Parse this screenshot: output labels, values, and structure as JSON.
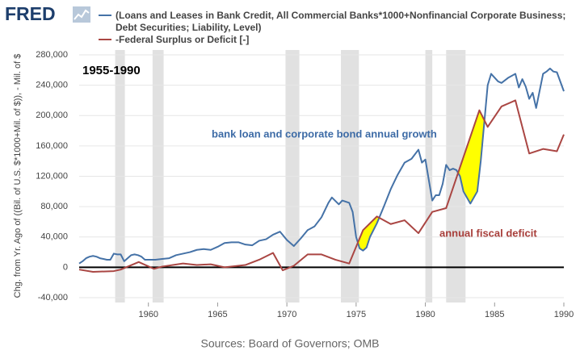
{
  "logo": "FRED",
  "chart_data": {
    "type": "line",
    "period_label": "1955-1990",
    "annotations": [
      {
        "text": "bank loan and corporate bond annual growth",
        "color": "#3d6ba6"
      },
      {
        "text": "annual fiscal deficit",
        "color": "#a83f3b"
      }
    ],
    "y_label": "Chg. from Yr. Ago of ((Bil. of U.S. $*1000+Mil. of $)), - Mil. of $",
    "source": "Sources: Board of Governors; OMB",
    "xlim": [
      1955,
      1990
    ],
    "xticks": [
      1960,
      1965,
      1970,
      1975,
      1980,
      1985,
      1990
    ],
    "ylim": [
      -40000,
      280000
    ],
    "yticks": [
      {
        "value": 280000,
        "label": "280,000"
      },
      {
        "value": 240000,
        "label": "240,000"
      },
      {
        "value": 200000,
        "label": "200,000"
      },
      {
        "value": 160000,
        "label": "160,000"
      },
      {
        "value": 120000,
        "label": "120,000"
      },
      {
        "value": 80000,
        "label": "80,000"
      },
      {
        "value": 40000,
        "label": "40,000"
      },
      0,
      {
        "value": -40000,
        "label": "-40,000"
      }
    ],
    "grid": true,
    "zero_line": true,
    "highlight_color": "#ffff00",
    "shaded_periods": [
      [
        1957.6,
        1958.3
      ],
      [
        1960.3,
        1961.1
      ],
      [
        1969.9,
        1970.9
      ],
      [
        1973.9,
        1975.2
      ],
      [
        1980.0,
        1980.5
      ],
      [
        1981.5,
        1982.9
      ]
    ],
    "series": [
      {
        "name": "(Loans and Leases in Bank Credit, All Commercial Banks*1000+Nonfinancial Corporate Business; Debt Securities; Liability, Level)",
        "color": "#4572a7",
        "x": [
          1955,
          1955.25,
          1955.5,
          1955.75,
          1956,
          1956.25,
          1956.5,
          1956.75,
          1957,
          1957.25,
          1957.5,
          1957.75,
          1958,
          1958.25,
          1958.5,
          1958.75,
          1959,
          1959.25,
          1959.5,
          1959.75,
          1960,
          1960.5,
          1961,
          1961.5,
          1962,
          1962.5,
          1963,
          1963.5,
          1964,
          1964.5,
          1965,
          1965.5,
          1966,
          1966.5,
          1967,
          1967.5,
          1968,
          1968.5,
          1969,
          1969.5,
          1970,
          1970.5,
          1971,
          1971.5,
          1972,
          1972.5,
          1973,
          1973.25,
          1973.75,
          1974,
          1974.5,
          1974.75,
          1975,
          1975.25,
          1975.5,
          1975.75,
          1976,
          1976.5,
          1977,
          1977.5,
          1978,
          1978.5,
          1979,
          1979.5,
          1979.75,
          1980,
          1980.5,
          1980.75,
          1981,
          1981.25,
          1981.5,
          1981.75,
          1982,
          1982.25,
          1982.5,
          1982.75,
          1983.25,
          1983.75,
          1984,
          1984.5,
          1984.75,
          1985.25,
          1985.5,
          1986,
          1986.5,
          1986.75,
          1987,
          1987.25,
          1987.5,
          1987.75,
          1988,
          1988.5,
          1988.75,
          1989,
          1989.25,
          1989.5,
          1990
        ],
        "values": [
          5000,
          8000,
          12000,
          14000,
          15000,
          14000,
          12000,
          11000,
          10000,
          10000,
          18000,
          17000,
          17000,
          8000,
          12000,
          16000,
          17000,
          16000,
          14000,
          10000,
          10000,
          10000,
          11000,
          12000,
          16000,
          18000,
          20000,
          23000,
          24000,
          23000,
          27000,
          32000,
          33000,
          33000,
          30000,
          29000,
          35000,
          37000,
          43000,
          47000,
          36000,
          28000,
          38000,
          49000,
          54000,
          66000,
          85000,
          92000,
          83000,
          88000,
          85000,
          73000,
          40000,
          25000,
          22000,
          26000,
          40000,
          58000,
          80000,
          103000,
          122000,
          138000,
          143000,
          155000,
          138000,
          142000,
          88000,
          95000,
          95000,
          110000,
          135000,
          128000,
          130000,
          128000,
          120000,
          100000,
          84000,
          100000,
          140000,
          240000,
          255000,
          245000,
          243000,
          250000,
          255000,
          237000,
          248000,
          238000,
          222000,
          230000,
          210000,
          255000,
          258000,
          262000,
          258000,
          257000,
          232000
        ]
      },
      {
        "name": "-Federal Surplus or Deficit [-]",
        "color": "#aa4643",
        "x": [
          1955,
          1956,
          1957.5,
          1958,
          1959.3,
          1960.4,
          1961,
          1962.5,
          1963.5,
          1964.5,
          1965.5,
          1967,
          1968,
          1969,
          1969.7,
          1970.5,
          1971.5,
          1972.5,
          1973.5,
          1974.5,
          1975.5,
          1976.5,
          1977.5,
          1978.5,
          1979.5,
          1980.5,
          1981.5,
          1983.9,
          1984.5,
          1985.5,
          1986.5,
          1987.5,
          1988.5,
          1989.5,
          1990
        ],
        "values": [
          -3000,
          -6000,
          -5000,
          -3000,
          7000,
          -2000,
          1000,
          5000,
          3000,
          4000,
          0,
          3000,
          10000,
          19000,
          -4000,
          2000,
          17000,
          17000,
          10000,
          5000,
          49000,
          67000,
          57000,
          62000,
          45000,
          73000,
          78000,
          207000,
          185000,
          212000,
          220000,
          150000,
          156000,
          153000,
          175000
        ]
      }
    ]
  }
}
